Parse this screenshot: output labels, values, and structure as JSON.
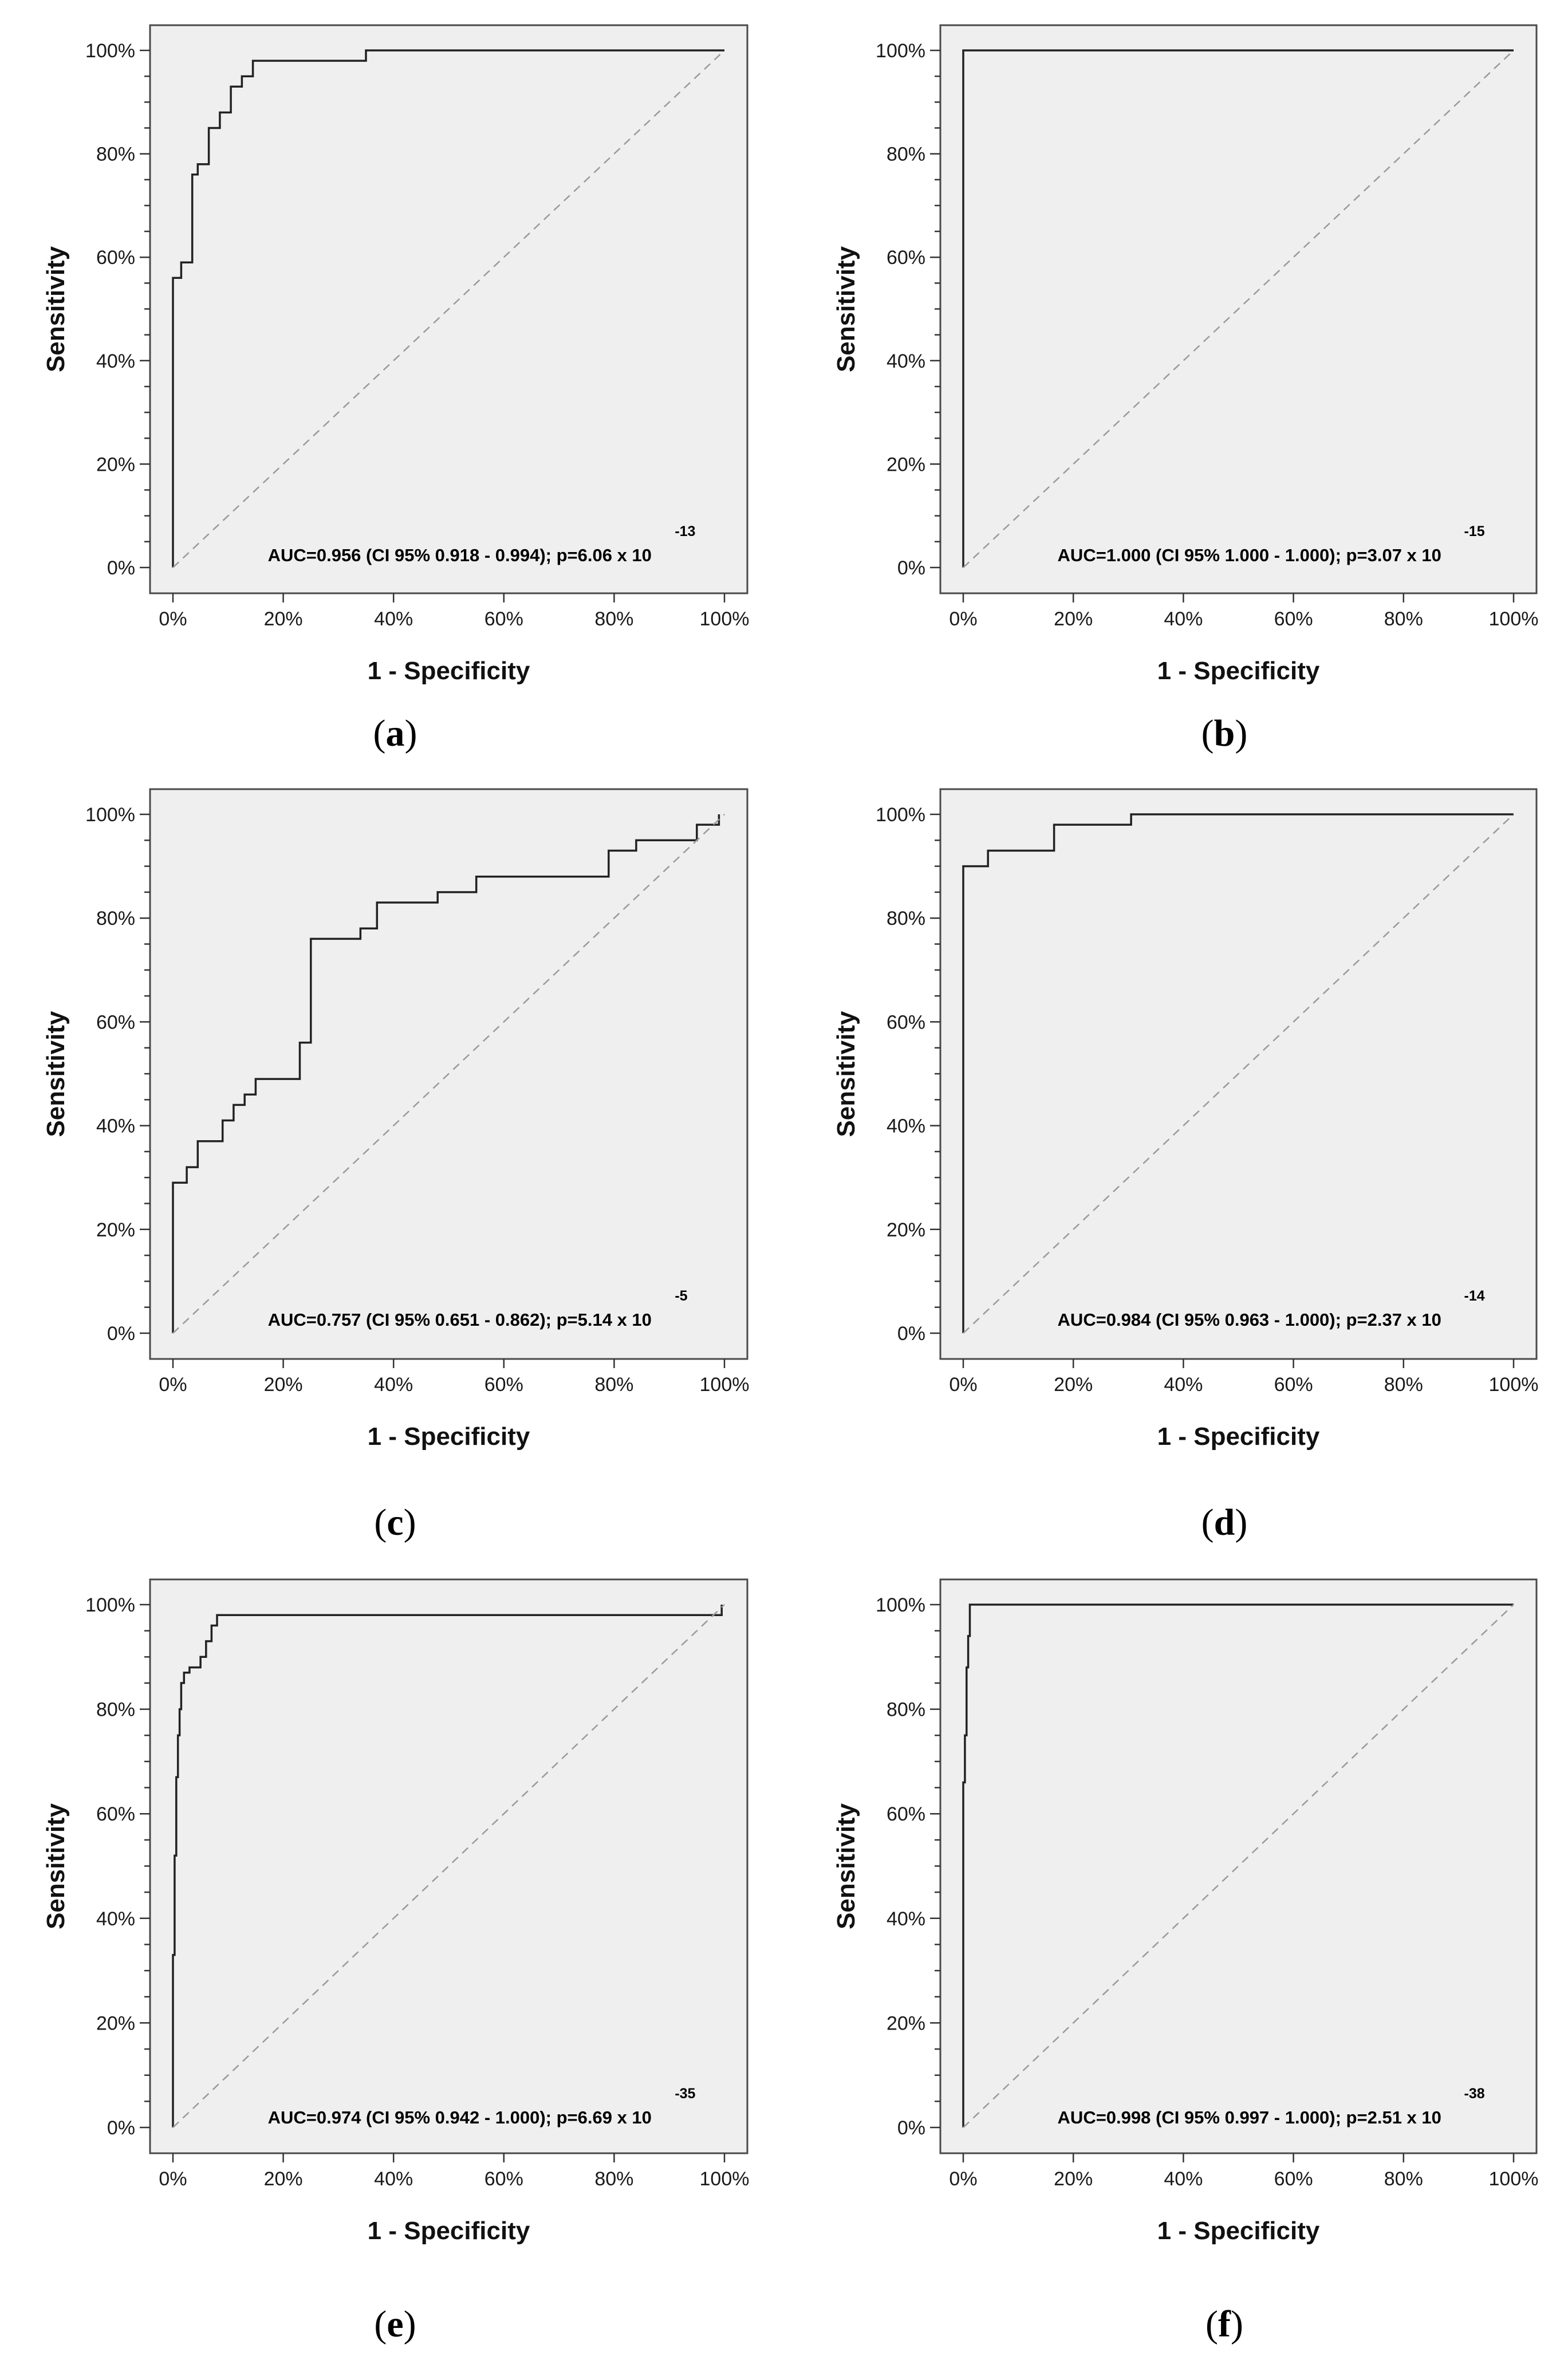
{
  "figure": {
    "background_color": "#ffffff",
    "plot_background_color": "#efefef",
    "curve_color": "#222222",
    "reference_line_color": "#9a9a9a"
  },
  "chart_data": [
    {
      "type": "line",
      "panel_label": "a",
      "xlabel": "1 - Specificity",
      "ylabel": "Sensitivity",
      "x_ticks": [
        "0%",
        "20%",
        "40%",
        "60%",
        "80%",
        "100%"
      ],
      "y_ticks": [
        "0%",
        "20%",
        "40%",
        "60%",
        "80%",
        "100%"
      ],
      "xlim": [
        0,
        100
      ],
      "ylim": [
        0,
        100
      ],
      "annotation": "AUC=0.956 (CI 95% 0.918 - 0.994); p=6.06 x 10",
      "annotation_exponent": "-13",
      "series": [
        {
          "name": "ROC curve",
          "x": [
            0,
            0,
            0,
            1.5,
            1.5,
            3.5,
            3.5,
            4.5,
            4.5,
            6.5,
            6.5,
            8.5,
            8.5,
            10.5,
            10.5,
            12.5,
            12.5,
            14.5,
            14.5,
            16.5,
            16.5,
            18.5,
            18.5,
            35,
            35,
            100
          ],
          "y": [
            0,
            56,
            56,
            56,
            59,
            59,
            76,
            76,
            78,
            78,
            85,
            85,
            88,
            88,
            93,
            93,
            95,
            95,
            98,
            98,
            98,
            98,
            98,
            98,
            100,
            100
          ]
        },
        {
          "name": "Reference",
          "x": [
            0,
            100
          ],
          "y": [
            0,
            100
          ]
        }
      ]
    },
    {
      "type": "line",
      "panel_label": "b",
      "xlabel": "1 - Specificity",
      "ylabel": "Sensitivity",
      "x_ticks": [
        "0%",
        "20%",
        "40%",
        "60%",
        "80%",
        "100%"
      ],
      "y_ticks": [
        "0%",
        "20%",
        "40%",
        "60%",
        "80%",
        "100%"
      ],
      "xlim": [
        0,
        100
      ],
      "ylim": [
        0,
        100
      ],
      "annotation": "AUC=1.000 (CI 95% 1.000 - 1.000); p=3.07 x 10",
      "annotation_exponent": "-15",
      "series": [
        {
          "name": "ROC curve",
          "x": [
            0,
            0,
            100
          ],
          "y": [
            0,
            100,
            100
          ]
        },
        {
          "name": "Reference",
          "x": [
            0,
            100
          ],
          "y": [
            0,
            100
          ]
        }
      ]
    },
    {
      "type": "line",
      "panel_label": "c",
      "xlabel": "1 - Specificity",
      "ylabel": "Sensitivity",
      "x_ticks": [
        "0%",
        "20%",
        "40%",
        "60%",
        "80%",
        "100%"
      ],
      "y_ticks": [
        "0%",
        "20%",
        "40%",
        "60%",
        "80%",
        "100%"
      ],
      "xlim": [
        0,
        100
      ],
      "ylim": [
        0,
        100
      ],
      "annotation": "AUC=0.757 (CI 95% 0.651 - 0.862); p=5.14 x 10",
      "annotation_exponent": "-5",
      "series": [
        {
          "name": "ROC curve",
          "x": [
            0,
            0,
            2.5,
            2.5,
            4.5,
            4.5,
            9,
            9,
            11,
            11,
            13,
            13,
            15,
            15,
            17,
            17,
            23,
            23,
            25,
            25,
            34,
            34,
            37,
            37,
            48,
            48,
            55,
            55,
            79,
            79,
            84,
            84,
            95,
            95,
            99,
            99
          ],
          "y": [
            0,
            29,
            29,
            32,
            32,
            37,
            37,
            41,
            41,
            44,
            44,
            46,
            46,
            49,
            49,
            49,
            49,
            56,
            56,
            76,
            76,
            78,
            78,
            83,
            83,
            85,
            85,
            88,
            88,
            93,
            93,
            95,
            95,
            98,
            98,
            100
          ]
        },
        {
          "name": "Reference",
          "x": [
            0,
            100
          ],
          "y": [
            0,
            100
          ]
        }
      ]
    },
    {
      "type": "line",
      "panel_label": "d",
      "xlabel": "1 - Specificity",
      "ylabel": "Sensitivity",
      "x_ticks": [
        "0%",
        "20%",
        "40%",
        "60%",
        "80%",
        "100%"
      ],
      "y_ticks": [
        "0%",
        "20%",
        "40%",
        "60%",
        "80%",
        "100%"
      ],
      "xlim": [
        0,
        100
      ],
      "ylim": [
        0,
        100
      ],
      "annotation": "AUC=0.984 (CI 95% 0.963 - 1.000); p=2.37 x 10",
      "annotation_exponent": "-14",
      "series": [
        {
          "name": "ROC curve",
          "x": [
            0,
            0,
            4.5,
            4.5,
            16.5,
            16.5,
            30.5,
            30.5,
            100
          ],
          "y": [
            0,
            90,
            90,
            93,
            93,
            98,
            98,
            100,
            100
          ]
        },
        {
          "name": "Reference",
          "x": [
            0,
            100
          ],
          "y": [
            0,
            100
          ]
        }
      ]
    },
    {
      "type": "line",
      "panel_label": "e",
      "xlabel": "1 - Specificity",
      "ylabel": "Sensitivity",
      "x_ticks": [
        "0%",
        "20%",
        "40%",
        "60%",
        "80%",
        "100%"
      ],
      "y_ticks": [
        "0%",
        "20%",
        "40%",
        "60%",
        "80%",
        "100%"
      ],
      "xlim": [
        0,
        100
      ],
      "ylim": [
        0,
        100
      ],
      "annotation": "AUC=0.974 (CI 95% 0.942 - 1.000); p=6.69 x 10",
      "annotation_exponent": "-35",
      "series": [
        {
          "name": "ROC curve",
          "x": [
            0,
            0,
            0.3,
            0.3,
            0.6,
            0.6,
            0.9,
            0.9,
            1.2,
            1.2,
            1.5,
            1.5,
            2,
            2,
            3,
            3,
            5,
            5,
            6,
            6,
            7,
            7,
            8,
            8,
            99.5,
            99.5
          ],
          "y": [
            0,
            33,
            33,
            52,
            52,
            67,
            67,
            75,
            75,
            80,
            80,
            85,
            85,
            87,
            87,
            88,
            88,
            90,
            90,
            93,
            93,
            96,
            96,
            98,
            98,
            100
          ]
        },
        {
          "name": "Reference",
          "x": [
            0,
            100
          ],
          "y": [
            0,
            100
          ]
        }
      ]
    },
    {
      "type": "line",
      "panel_label": "f",
      "xlabel": "1 - Specificity",
      "ylabel": "Sensitivity",
      "x_ticks": [
        "0%",
        "20%",
        "40%",
        "60%",
        "80%",
        "100%"
      ],
      "y_ticks": [
        "0%",
        "20%",
        "40%",
        "60%",
        "80%",
        "100%"
      ],
      "xlim": [
        0,
        100
      ],
      "ylim": [
        0,
        100
      ],
      "annotation": "AUC=0.998 (CI 95% 0.997 - 1.000); p=2.51 x 10",
      "annotation_exponent": "-38",
      "series": [
        {
          "name": "ROC curve",
          "x": [
            0,
            0,
            0.3,
            0.3,
            0.6,
            0.6,
            0.9,
            0.9,
            1.2,
            1.2,
            100
          ],
          "y": [
            0,
            66,
            66,
            75,
            75,
            88,
            88,
            94,
            94,
            100,
            100
          ]
        },
        {
          "name": "Reference",
          "x": [
            0,
            100
          ],
          "y": [
            0,
            100
          ]
        }
      ]
    }
  ]
}
